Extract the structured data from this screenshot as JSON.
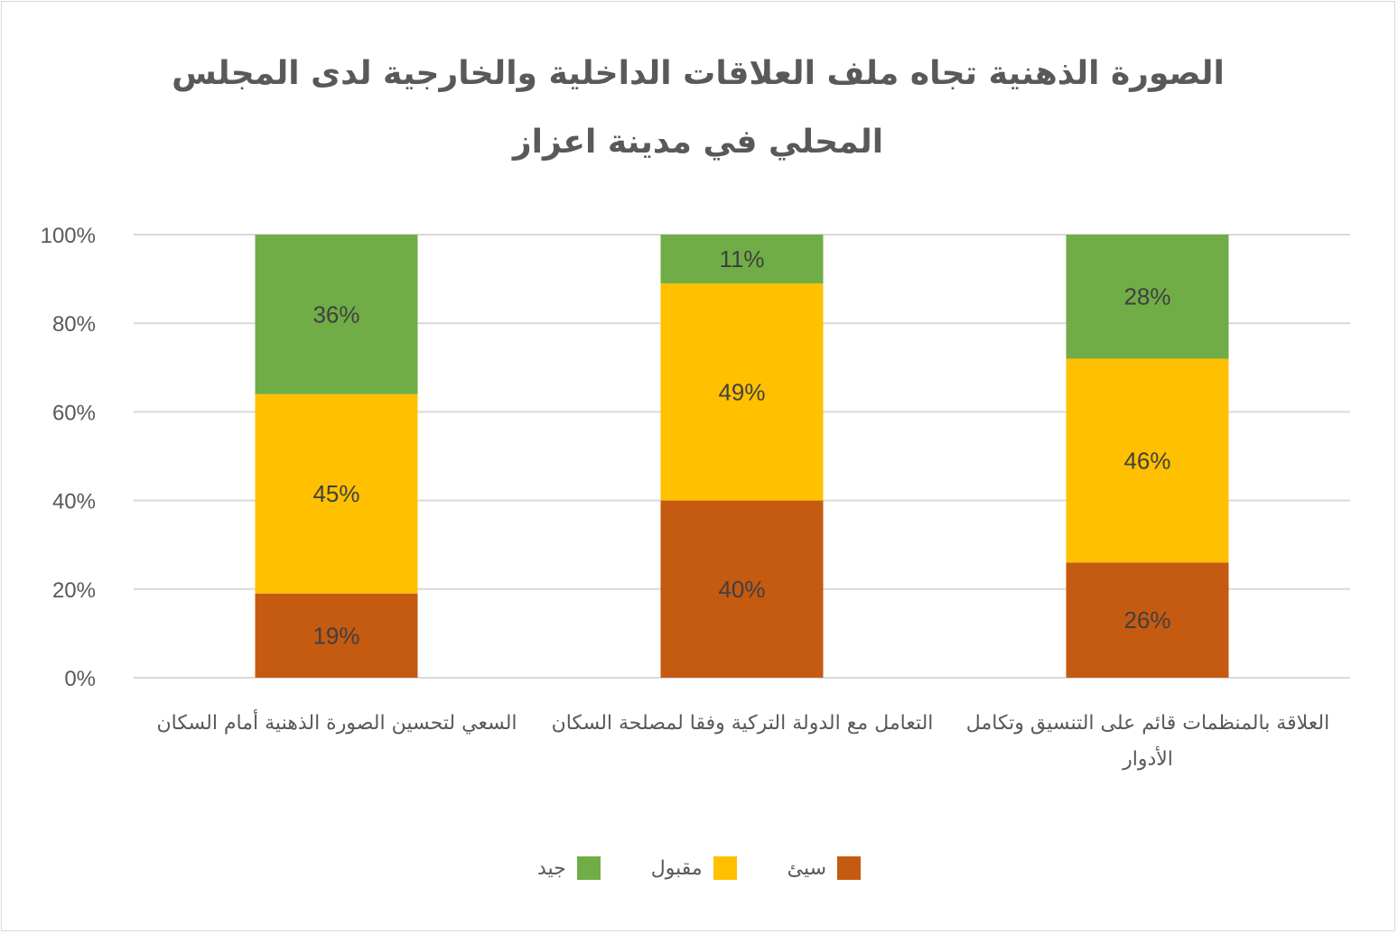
{
  "chart_data": {
    "type": "bar",
    "stacked": true,
    "percent_stacked": true,
    "title": "الصورة الذهنية تجاه ملف العلاقات الداخلية والخارجية لدى المجلس المحلي في مدينة اعزاز",
    "categories": [
      "السعي لتحسين الصورة الذهنية أمام السكان",
      "التعامل مع الدولة التركية وفقا لمصلحة السكان",
      "العلاقة بالمنظمات قائم على التنسيق وتكامل الأدوار"
    ],
    "series": [
      {
        "name": "سيئ",
        "color": "#c55a11",
        "values": [
          19,
          40,
          26
        ],
        "labels": [
          "19%",
          "40%",
          "26%"
        ]
      },
      {
        "name": "مقبول",
        "color": "#ffc000",
        "values": [
          45,
          49,
          46
        ],
        "labels": [
          "45%",
          "49%",
          "46%"
        ]
      },
      {
        "name": "جيد",
        "color": "#70ad47",
        "values": [
          36,
          11,
          28
        ],
        "labels": [
          "36%",
          "11%",
          "28%"
        ]
      }
    ],
    "y_ticks": [
      "0%",
      "20%",
      "40%",
      "60%",
      "80%",
      "100%"
    ],
    "ylim": [
      0,
      100
    ],
    "grid": true,
    "legend_position": "bottom"
  }
}
